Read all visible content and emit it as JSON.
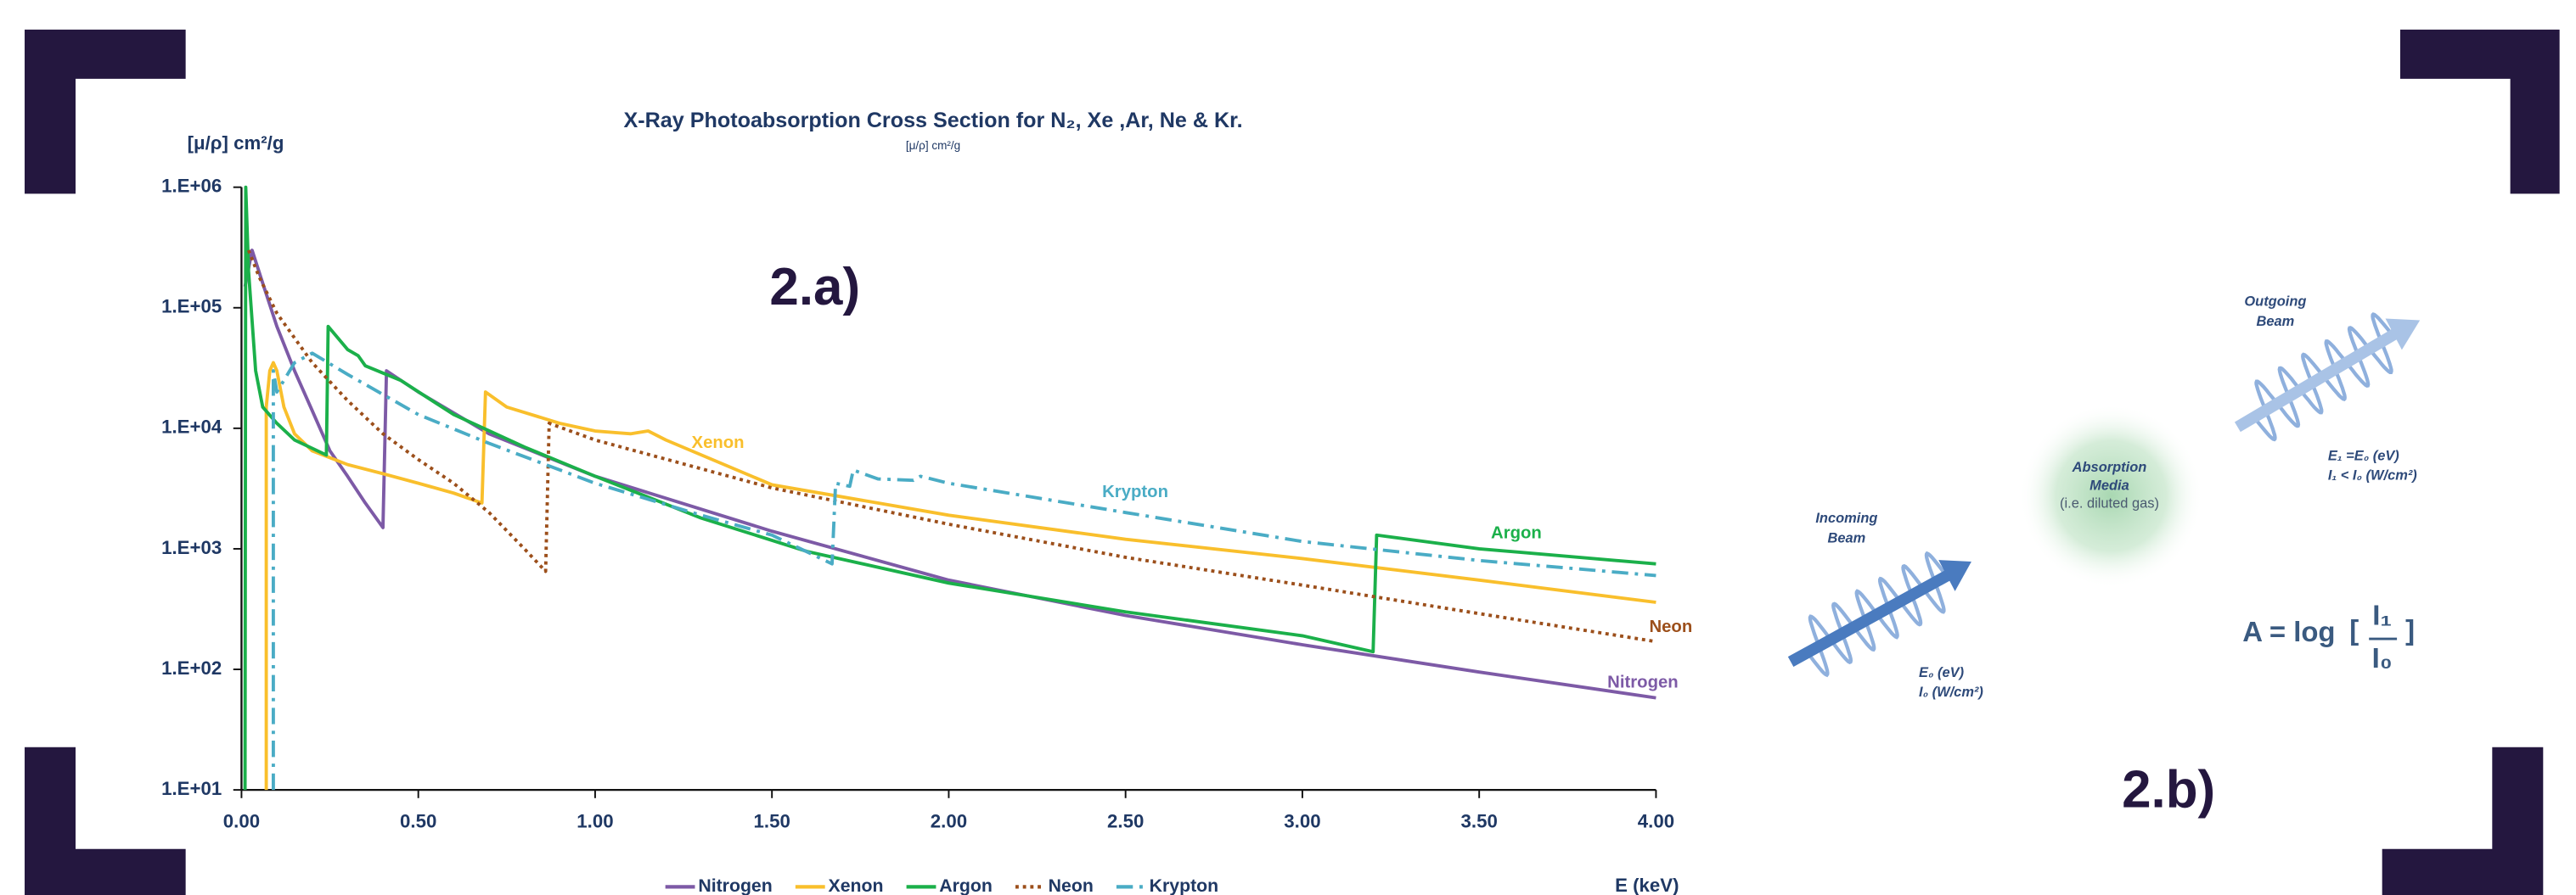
{
  "chart_data": {
    "type": "line",
    "title": "X-Ray Photoabsorption Cross Section for N₂, Xe ,Ar, Ne  & Kr.",
    "subtitle": "[μ/ρ] cm²/g",
    "y_label": "[μ/ρ] cm²/g",
    "x_label": "E (keV)",
    "annotation": "2.a)",
    "yscale": "log",
    "grid": false,
    "legend": "bottom",
    "xlim": [
      0,
      4
    ],
    "ylim": [
      10,
      1000000
    ],
    "xticks": [
      {
        "value": 0,
        "label": "0.00"
      },
      {
        "value": 0.5,
        "label": "0.50"
      },
      {
        "value": 1,
        "label": "1.00"
      },
      {
        "value": 1.5,
        "label": "1.50"
      },
      {
        "value": 2,
        "label": "2.00"
      },
      {
        "value": 2.5,
        "label": "2.50"
      },
      {
        "value": 3,
        "label": "3.00"
      },
      {
        "value": 3.5,
        "label": "3.50"
      },
      {
        "value": 4,
        "label": "4.00"
      }
    ],
    "yticks": [
      {
        "value": 10,
        "label": "1.E+01"
      },
      {
        "value": 100,
        "label": "1.E+02"
      },
      {
        "value": 1000,
        "label": "1.E+03"
      },
      {
        "value": 10000,
        "label": "1.E+04"
      },
      {
        "value": 100000,
        "label": "1.E+05"
      },
      {
        "value": 1000000,
        "label": "1.E+06"
      }
    ],
    "series": [
      {
        "name": "Nitrogen",
        "color": "#7d5aa6",
        "style": "solid",
        "x": [
          0.01,
          0.03,
          0.06,
          0.1,
          0.15,
          0.2,
          0.25,
          0.3,
          0.35,
          0.4,
          0.41,
          0.5,
          0.7,
          1.0,
          1.5,
          2.0,
          2.5,
          3.0,
          3.5,
          4.0
        ],
        "values": [
          150000,
          300000,
          160000,
          70000,
          30000,
          14000,
          6500,
          4000,
          2400,
          1500,
          30000,
          20000,
          9000,
          4000,
          1400,
          550,
          280,
          160,
          95,
          58
        ]
      },
      {
        "name": "Xenon",
        "color": "#f9bf2c",
        "style": "solid",
        "x": [
          0.07,
          0.07,
          0.08,
          0.09,
          0.1,
          0.12,
          0.15,
          0.2,
          0.3,
          0.4,
          0.5,
          0.6,
          0.68,
          0.69,
          0.75,
          0.9,
          1.0,
          1.1,
          1.15,
          1.2,
          1.5,
          2.0,
          2.5,
          3.0,
          3.5,
          4.0
        ],
        "values": [
          10,
          15000,
          30000,
          35000,
          30000,
          15000,
          9000,
          6500,
          5000,
          4200,
          3500,
          2900,
          2400,
          20000,
          15000,
          11000,
          9500,
          9000,
          9500,
          8000,
          3400,
          1900,
          1200,
          830,
          550,
          360
        ]
      },
      {
        "name": "Argon",
        "color": "#1bb04a",
        "style": "solid",
        "x": [
          0.01,
          0.012,
          0.02,
          0.04,
          0.06,
          0.1,
          0.15,
          0.24,
          0.245,
          0.3,
          0.33,
          0.35,
          0.45,
          0.6,
          0.8,
          1.0,
          1.3,
          1.6,
          2.0,
          2.5,
          3.0,
          3.2,
          3.21,
          3.5,
          4.0
        ],
        "values": [
          10,
          1000000,
          200000,
          30000,
          15000,
          11000,
          8000,
          6000,
          70000,
          45000,
          40000,
          33000,
          25000,
          13000,
          7000,
          4000,
          1800,
          950,
          520,
          300,
          190,
          140,
          1300,
          1000,
          750
        ]
      },
      {
        "name": "Neon",
        "color": "#9c4f1b",
        "style": "dotted",
        "x": [
          0.02,
          0.05,
          0.1,
          0.2,
          0.3,
          0.4,
          0.5,
          0.6,
          0.7,
          0.8,
          0.86,
          0.87,
          1.0,
          1.5,
          2.0,
          2.5,
          3.0,
          3.5,
          4.0
        ],
        "values": [
          300000,
          180000,
          90000,
          35000,
          17000,
          9000,
          5500,
          3500,
          2000,
          1000,
          650,
          11000,
          8000,
          3200,
          1600,
          850,
          500,
          290,
          170
        ]
      },
      {
        "name": "Krypton",
        "color": "#4aacc5",
        "style": "dashdot",
        "x": [
          0.09,
          0.09,
          0.1,
          0.12,
          0.15,
          0.2,
          0.3,
          0.5,
          0.7,
          1.0,
          1.3,
          1.5,
          1.67,
          1.68,
          1.72,
          1.73,
          1.8,
          1.9,
          1.92,
          2.0,
          2.5,
          3.0,
          3.5,
          4.0
        ],
        "values": [
          10,
          30000,
          20000,
          25000,
          35000,
          42000,
          28000,
          13000,
          7500,
          3500,
          1900,
          1300,
          750,
          3500,
          3300,
          4500,
          3800,
          3700,
          4000,
          3500,
          2000,
          1150,
          800,
          600
        ]
      }
    ]
  },
  "diagram": {
    "outgoing_beam": [
      "Outgoing",
      "Beam"
    ],
    "outgoing_energy": "E₁ =E₀ (eV)",
    "outgoing_intensity": "I₁ < I₀ (W/cm²)",
    "media": [
      "Absorption",
      "Media",
      "(i.e. diluted gas)"
    ],
    "incoming_beam": [
      "Incoming",
      "Beam"
    ],
    "incoming_energy": "E₀ (eV)",
    "incoming_intensity": "I₀ (W/cm²)",
    "formula": {
      "lhs": "A = log",
      "open": "[",
      "numerator": "I₁",
      "denominator": "I₀",
      "close": "]"
    },
    "label": "2.b)"
  }
}
